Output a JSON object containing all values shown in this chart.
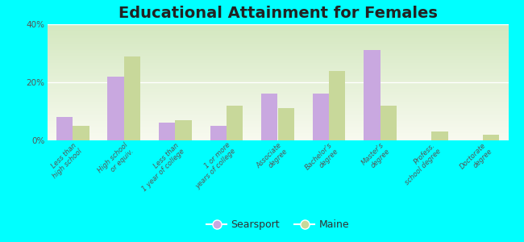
{
  "title": "Educational Attainment for Females",
  "categories": [
    "Less than\nhigh school",
    "High school\nor equiv.",
    "Less than\n1 year of college",
    "1 or more\nyears of college",
    "Associate\ndegree",
    "Bachelor's\ndegree",
    "Master's\ndegree",
    "Profess.\nschool degree",
    "Doctorate\ndegree"
  ],
  "searsport": [
    8,
    22,
    6,
    5,
    16,
    16,
    31,
    0,
    0
  ],
  "maine": [
    5,
    29,
    7,
    12,
    11,
    24,
    12,
    3,
    2
  ],
  "searsport_color": "#c9a8e0",
  "maine_color": "#c8d89a",
  "background_color": "#00ffff",
  "title_fontsize": 14,
  "tick_fontsize": 6,
  "ylim": [
    0,
    40
  ],
  "yticks": [
    0,
    20,
    40
  ],
  "ytick_labels": [
    "0%",
    "20%",
    "40%"
  ],
  "bar_width": 0.32,
  "legend_labels": [
    "Searsport",
    "Maine"
  ],
  "grad_bottom": "#d4e8c0",
  "grad_top": "#f8faf0"
}
